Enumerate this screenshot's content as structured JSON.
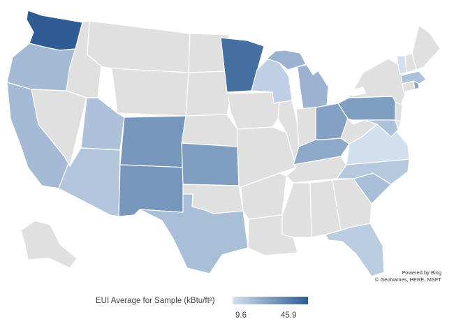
{
  "attribution": {
    "line1": "Powered by Bing",
    "line2": "© GeoNames, HERE, MSFT"
  },
  "legend": {
    "title": "EUI Average for Sample (kBtu/ft²)",
    "min_label": "9.6",
    "max_label": "45.9",
    "min_color": "#d3e0ef",
    "max_color": "#2f5d93"
  },
  "colors": {
    "no_data": "#e0e0e0",
    "border": "#ffffff"
  },
  "map_data": {
    "value_range": [
      9.6,
      45.9
    ],
    "values": {
      "WA": 45.9,
      "MN": 41.0,
      "CO": 30.0,
      "NM": 30.0,
      "KS": 28.0,
      "PA": 28.0,
      "OH": 27.0,
      "KY": 25.0,
      "MI": 22.0,
      "RI": 26.0,
      "OR": 20.0,
      "CA": 20.0,
      "UT": 18.0,
      "AZ": 17.0,
      "TX": 19.0,
      "SC": 19.0,
      "NC": 16.0,
      "FL": 15.0,
      "MA": 18.0,
      "MD": 18.0,
      "WI": 14.0,
      "VA": 10.0,
      "VT": 9.6
    }
  }
}
